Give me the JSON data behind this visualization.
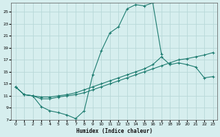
{
  "xlabel": "Humidex (Indice chaleur)",
  "bg_color": "#d6eeee",
  "grid_color": "#b8d8d8",
  "line_color": "#1a7a6e",
  "xlim": [
    -0.5,
    23.5
  ],
  "ylim": [
    7,
    26.5
  ],
  "xticks": [
    0,
    1,
    2,
    3,
    4,
    5,
    6,
    7,
    8,
    9,
    10,
    11,
    12,
    13,
    14,
    15,
    16,
    17,
    18,
    19,
    20,
    21,
    22,
    23
  ],
  "yticks": [
    7,
    9,
    11,
    13,
    15,
    17,
    19,
    21,
    23,
    25
  ],
  "curve1_x": [
    0,
    1,
    2,
    3,
    4,
    5,
    6,
    7,
    8,
    9,
    10,
    11,
    12,
    13,
    14,
    15,
    16,
    17,
    18,
    19,
    20,
    21,
    22,
    23
  ],
  "curve1_y": [
    12.5,
    11.2,
    11.0,
    9.2,
    8.5,
    8.2,
    7.8,
    7.2,
    8.5,
    14.5,
    18.5,
    21.5,
    22.5,
    25.5,
    26.2,
    26.0,
    26.5,
    18.0,
    null,
    null,
    null,
    null,
    null,
    null
  ],
  "curve2_x": [
    0,
    1,
    2,
    3,
    4,
    5,
    6,
    7,
    8,
    9,
    10,
    11,
    12,
    13,
    14,
    15,
    16,
    17,
    18,
    19,
    20,
    21,
    22,
    23
  ],
  "curve2_y": [
    12.5,
    11.2,
    11.0,
    10.8,
    10.8,
    11.0,
    11.2,
    11.5,
    12.0,
    12.5,
    13.0,
    13.5,
    14.0,
    14.5,
    15.0,
    15.5,
    16.2,
    17.5,
    16.2,
    16.5,
    16.2,
    15.8,
    14.0,
    14.2
  ],
  "curve3_x": [
    0,
    1,
    2,
    3,
    4,
    5,
    6,
    7,
    8,
    9,
    10,
    11,
    12,
    13,
    14,
    15,
    16,
    17,
    18,
    19,
    20,
    21,
    22,
    23
  ],
  "curve3_y": [
    12.5,
    11.2,
    11.0,
    10.5,
    10.5,
    10.8,
    11.0,
    11.2,
    11.5,
    12.0,
    12.5,
    13.0,
    13.5,
    14.0,
    14.5,
    15.0,
    15.5,
    16.0,
    16.5,
    17.0,
    17.2,
    17.5,
    17.8,
    18.2
  ]
}
